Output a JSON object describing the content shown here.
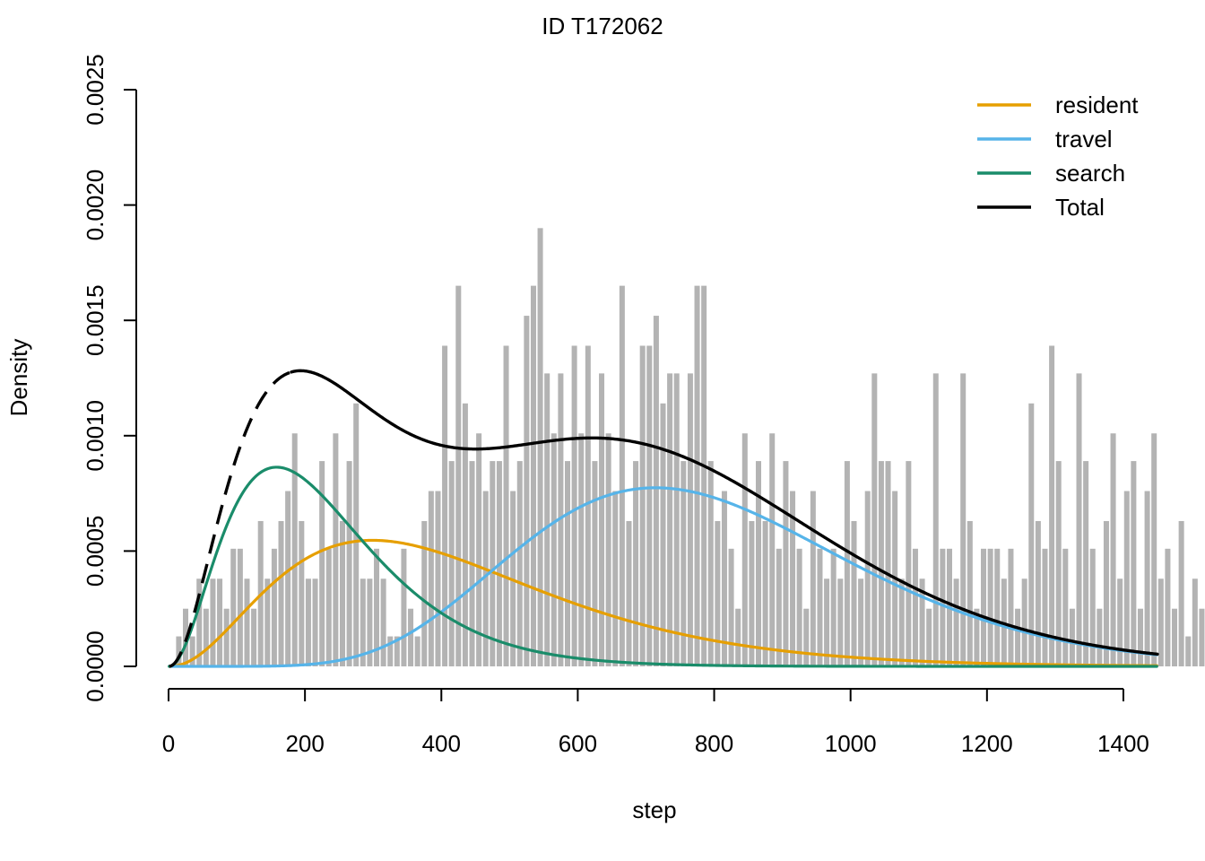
{
  "chart_data": {
    "type": "histogram-with-density-curves",
    "title": "ID T172062",
    "xlabel": "step",
    "ylabel": "Density",
    "xlim": [
      0,
      1450
    ],
    "ylim": [
      0,
      0.0025
    ],
    "x_ticks": [
      "0",
      "200",
      "400",
      "600",
      "800",
      "1000",
      "1200",
      "1400"
    ],
    "y_ticks": [
      "0.0000",
      "0.0005",
      "0.0010",
      "0.0015",
      "0.0020",
      "0.0025"
    ],
    "legend_position": "top-right",
    "histogram": {
      "bin_width": 10,
      "color": "#b3b3b3",
      "densities": [
        0.0,
        0.00013,
        0.00025,
        0.00013,
        0.00038,
        0.00025,
        0.00038,
        0.00038,
        0.00025,
        0.00051,
        0.00051,
        0.00038,
        0.00025,
        0.00063,
        0.00038,
        0.00051,
        0.00063,
        0.00076,
        0.00101,
        0.00063,
        0.00038,
        0.00038,
        0.00089,
        0.00051,
        0.00101,
        0.00063,
        0.00089,
        0.00114,
        0.00038,
        0.00038,
        0.00051,
        0.00038,
        0.00013,
        0.00013,
        0.00051,
        0.00025,
        0.00013,
        0.00063,
        0.00076,
        0.00076,
        0.00139,
        0.00089,
        0.00165,
        0.00114,
        0.00089,
        0.00101,
        0.00076,
        0.00089,
        0.00089,
        0.00139,
        0.00076,
        0.00089,
        0.00152,
        0.00165,
        0.0019,
        0.00127,
        0.00101,
        0.00127,
        0.00089,
        0.00139,
        0.00101,
        0.00139,
        0.00089,
        0.00127,
        0.00101,
        0.00076,
        0.00165,
        0.00063,
        0.00089,
        0.00139,
        0.00139,
        0.00152,
        0.00114,
        0.00127,
        0.00127,
        0.00089,
        0.00127,
        0.00165,
        0.00165,
        0.00089,
        0.00063,
        0.00076,
        0.00051,
        0.00025,
        0.00101,
        0.00063,
        0.00089,
        0.00063,
        0.00101,
        0.00051,
        0.00089,
        0.00076,
        0.00051,
        0.00025,
        0.00076,
        0.00051,
        0.00038,
        0.00051,
        0.00038,
        0.00089,
        0.00063,
        0.00038,
        0.00076,
        0.00127,
        0.00089,
        0.00089,
        0.00076,
        0.00038,
        0.00089,
        0.00051,
        0.00038,
        0.00025,
        0.00127,
        0.00051,
        0.00051,
        0.00038,
        0.00127,
        0.00063,
        0.00025,
        0.00051,
        0.00051,
        0.00051,
        0.00038,
        0.00051,
        0.00025,
        0.00038,
        0.00114,
        0.00063,
        0.00051,
        0.00139,
        0.00089,
        0.00051,
        0.00025,
        0.00127,
        0.00089,
        0.00051,
        0.00025,
        0.00063,
        0.00101,
        0.00038,
        0.00076,
        0.00089,
        0.00025,
        0.00076,
        0.00101,
        0.00038,
        0.00051,
        0.00025,
        0.00063,
        0.00013,
        0.00038,
        0.00025,
        0.00025,
        0.00013,
        0.00013,
        0.00013,
        0.00013,
        0.00025,
        0.0,
        0.0,
        0.0,
        0.0,
        0.00025,
        0.00013,
        0.0,
        0.00013,
        0.0,
        0.0
      ]
    },
    "series": [
      {
        "name": "resident",
        "color": "#e69f00",
        "curve": {
          "form": "gamma",
          "shape": 3.3,
          "scale": 130,
          "weight": 0.28
        }
      },
      {
        "name": "travel",
        "color": "#56b4e9",
        "curve": {
          "form": "gamma",
          "shape": 9.5,
          "scale": 84,
          "weight": 0.48
        }
      },
      {
        "name": "search",
        "color": "#1a8c6a",
        "curve": {
          "form": "gamma",
          "shape": 3.2,
          "scale": 72,
          "weight": 0.24
        }
      },
      {
        "name": "Total",
        "color": "#000000",
        "curve": {
          "form": "sum-of-components",
          "dashed_below_step": 180
        }
      }
    ]
  }
}
